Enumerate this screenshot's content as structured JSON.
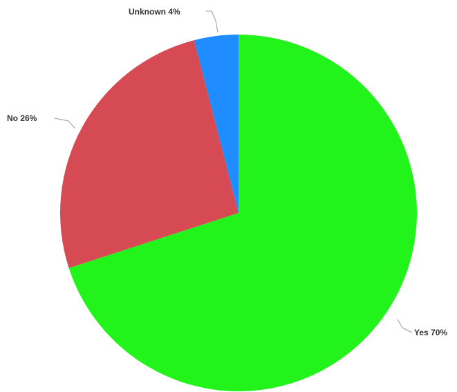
{
  "chart_data": {
    "type": "pie",
    "title": "",
    "slices": [
      {
        "label": "Yes 70%",
        "value": 70,
        "color": "#22f41b"
      },
      {
        "label": "No 26%",
        "value": 26,
        "color": "#d64a53"
      },
      {
        "label": "Unknown 4%",
        "value": 4,
        "color": "#1f8cff"
      }
    ],
    "legend": "none",
    "start": "top",
    "direction": "clockwise"
  }
}
